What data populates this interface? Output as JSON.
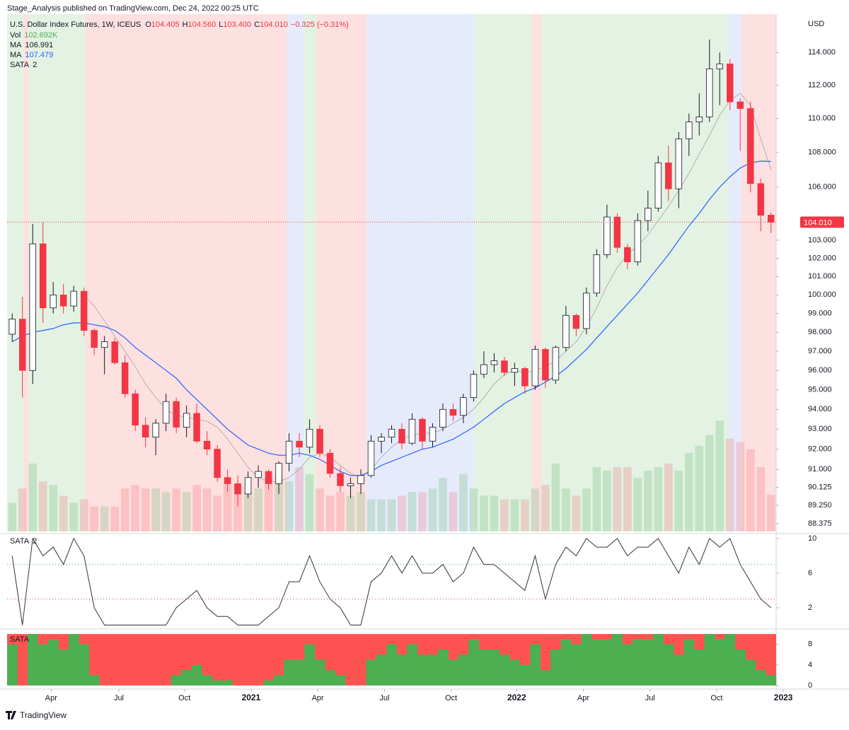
{
  "chart_data": {
    "type": "candlestick",
    "header": "Stage_Analysis published on TradingView.com, Dec 24, 2022 00:25 UTC",
    "title": "U.S. Dollar Index Futures, 1W, ICEUS",
    "currency": "USD",
    "ohlc_labels": [
      "O",
      "H",
      "L",
      "C"
    ],
    "legend_values": [
      "104.405",
      "104.560",
      "103.400",
      "104.010"
    ],
    "change_label": "−0.325 (−0.31%)",
    "footer": "TradingView",
    "xlim": [
      -0.5,
      74.5
    ],
    "xticks": [
      {
        "value": 3.8,
        "label": "Apr"
      },
      {
        "value": 10.4,
        "label": "Jul"
      },
      {
        "value": 16.8,
        "label": "Oct"
      },
      {
        "value": 23.3,
        "label": "2021"
      },
      {
        "value": 29.8,
        "label": "Apr"
      },
      {
        "value": 36.3,
        "label": "Jul"
      },
      {
        "value": 42.8,
        "label": "Oct"
      },
      {
        "value": 49.2,
        "label": "2022"
      },
      {
        "value": 55.7,
        "label": "Apr"
      },
      {
        "value": 62.2,
        "label": "Jul"
      },
      {
        "value": 68.7,
        "label": "Oct"
      },
      {
        "value": 75.2,
        "label": "2023"
      }
    ],
    "ylim": [
      88,
      116.3
    ],
    "log_scale": true,
    "yticks": [
      {
        "value": 114,
        "label": "114.000"
      },
      {
        "value": 112,
        "label": "112.000"
      },
      {
        "value": 110,
        "label": "110.000"
      },
      {
        "value": 108,
        "label": "108.000"
      },
      {
        "value": 106,
        "label": "106.000"
      },
      {
        "value": 103,
        "label": "103.000"
      },
      {
        "value": 102,
        "label": "102.000"
      },
      {
        "value": 101,
        "label": "101.000"
      },
      {
        "value": 100,
        "label": "100.000"
      },
      {
        "value": 99,
        "label": "99.000"
      },
      {
        "value": 98,
        "label": "98.000"
      },
      {
        "value": 97,
        "label": "97.000"
      },
      {
        "value": 96,
        "label": "96.000"
      },
      {
        "value": 95,
        "label": "95.000"
      },
      {
        "value": 94,
        "label": "94.000"
      },
      {
        "value": 93,
        "label": "93.000"
      },
      {
        "value": 92,
        "label": "92.000"
      },
      {
        "value": 91,
        "label": "91.000"
      },
      {
        "value": 90.125,
        "label": "90.125"
      },
      {
        "value": 89.25,
        "label": "89.250"
      },
      {
        "value": 88.375,
        "label": "88.375"
      }
    ],
    "up_color": "#ffffff",
    "down_color": "#f23645",
    "open": [
      97.9,
      98.7,
      96.0,
      102.8,
      99.3,
      100.0,
      99.4,
      100.2,
      98.1,
      97.2,
      97.5,
      96.4,
      94.8,
      93.2,
      92.6,
      93.3,
      94.4,
      93.1,
      93.8,
      92.4,
      92.0,
      90.6,
      90.3,
      89.8,
      90.6,
      90.9,
      90.3,
      91.3,
      92.4,
      92.1,
      93.0,
      91.8,
      90.8,
      90.2,
      90.3,
      90.7,
      92.4,
      92.6,
      93.0,
      92.3,
      93.5,
      92.4,
      93.1,
      94.0,
      93.7,
      94.6,
      95.8,
      96.3,
      96.5,
      95.9,
      96.1,
      95.2,
      97.1,
      95.5,
      97.2,
      98.9,
      98.2,
      100.1,
      102.2,
      104.3,
      102.6,
      101.8,
      104.1,
      104.8,
      107.4,
      105.9,
      108.8,
      109.8,
      110.1,
      113.0,
      113.3,
      111.0,
      110.6,
      106.2,
      104.405
    ],
    "high": [
      99.0,
      99.9,
      103.9,
      104.0,
      100.7,
      100.6,
      100.5,
      100.4,
      98.2,
      97.8,
      97.7,
      96.8,
      95.0,
      93.6,
      93.5,
      94.8,
      94.6,
      94.2,
      94.3,
      92.9,
      92.2,
      91.0,
      90.7,
      90.9,
      91.2,
      91.0,
      91.4,
      92.8,
      92.8,
      93.5,
      93.2,
      92.0,
      91.1,
      90.6,
      91.0,
      92.7,
      92.8,
      93.2,
      93.3,
      93.8,
      93.6,
      93.3,
      94.3,
      94.3,
      94.8,
      96.0,
      97.0,
      96.9,
      96.7,
      96.4,
      96.2,
      97.3,
      97.2,
      97.3,
      99.4,
      99.0,
      100.4,
      102.5,
      105.0,
      104.5,
      102.8,
      104.5,
      105.8,
      107.8,
      108.4,
      109.2,
      110.3,
      111.5,
      114.8,
      114.0,
      113.6,
      111.2,
      111.0,
      106.5,
      104.56
    ],
    "low": [
      97.5,
      94.6,
      95.3,
      98.5,
      99.0,
      99.0,
      99.1,
      97.8,
      96.8,
      95.8,
      96.3,
      94.6,
      92.9,
      92.1,
      91.7,
      92.9,
      92.8,
      92.6,
      92.3,
      91.7,
      90.4,
      89.9,
      89.2,
      89.6,
      90.1,
      90.0,
      89.8,
      90.9,
      91.6,
      91.8,
      91.6,
      90.6,
      89.9,
      89.6,
      89.8,
      90.6,
      91.8,
      92.3,
      92.0,
      92.2,
      92.0,
      92.1,
      92.9,
      93.4,
      93.3,
      94.4,
      95.6,
      95.9,
      95.7,
      95.2,
      94.8,
      95.0,
      95.1,
      95.3,
      97.0,
      97.8,
      97.9,
      99.9,
      102.0,
      102.3,
      101.4,
      101.6,
      103.5,
      104.6,
      105.2,
      104.8,
      107.8,
      109.0,
      109.8,
      110.8,
      110.5,
      108.1,
      105.7,
      103.5,
      103.4
    ],
    "close": [
      98.7,
      96.0,
      102.8,
      99.3,
      100.0,
      99.4,
      100.2,
      98.1,
      97.2,
      97.5,
      96.4,
      94.8,
      93.2,
      92.6,
      93.3,
      94.4,
      93.1,
      93.8,
      92.4,
      92.0,
      90.6,
      90.3,
      89.8,
      90.6,
      90.9,
      90.3,
      91.3,
      92.4,
      92.1,
      93.0,
      91.8,
      90.8,
      90.2,
      90.3,
      90.7,
      92.4,
      92.6,
      93.0,
      92.3,
      93.5,
      92.4,
      93.1,
      94.0,
      93.7,
      94.6,
      95.8,
      96.3,
      96.5,
      95.9,
      96.1,
      95.2,
      97.1,
      95.5,
      97.2,
      98.9,
      98.2,
      100.1,
      102.2,
      104.3,
      102.6,
      101.8,
      104.1,
      104.8,
      107.4,
      105.9,
      108.8,
      109.8,
      110.1,
      113.0,
      113.3,
      111.0,
      110.6,
      106.2,
      104.4,
      104.01
    ],
    "volume": {
      "name": "Vol",
      "value_label": "102.692K",
      "vlim": [
        0,
        360
      ],
      "values": [
        80,
        120,
        190,
        140,
        130,
        100,
        80,
        90,
        70,
        70,
        70,
        120,
        130,
        120,
        120,
        110,
        120,
        110,
        130,
        120,
        100,
        140,
        130,
        110,
        120,
        150,
        150,
        140,
        180,
        160,
        120,
        100,
        110,
        100,
        110,
        90,
        90,
        90,
        100,
        110,
        110,
        120,
        150,
        110,
        160,
        120,
        100,
        100,
        90,
        90,
        90,
        120,
        130,
        190,
        120,
        100,
        120,
        180,
        170,
        180,
        180,
        150,
        170,
        180,
        190,
        170,
        220,
        240,
        270,
        310,
        260,
        250,
        230,
        180,
        102.692
      ]
    },
    "moving_averages": [
      {
        "name": "MA",
        "color": "#a3a3a3",
        "values": [
          null,
          null,
          null,
          null,
          null,
          null,
          null,
          100,
          99.4,
          98.6,
          97.8,
          97,
          96.2,
          95.3,
          94.6,
          94,
          93.7,
          93.6,
          93.5,
          93.4,
          93.1,
          92.5,
          91.8,
          91.1,
          90.6,
          90.4,
          90.4,
          90.6,
          91,
          91.6,
          91.8,
          91.6,
          91.2,
          90.8,
          90.6,
          91,
          91.6,
          92.1,
          92.5,
          92.7,
          92.8,
          92.8,
          93,
          93.3,
          93.6,
          94,
          94.6,
          95.3,
          95.8,
          96,
          95.9,
          96,
          96.2,
          96.5,
          97,
          97.5,
          98.3,
          99.3,
          100.5,
          101.5,
          102.2,
          102.7,
          103.3,
          104.1,
          104.9,
          105.8,
          106.8,
          107.9,
          109,
          110.2,
          111.1,
          111.5,
          110.8,
          108.8,
          106.991
        ]
      },
      {
        "name": "MA",
        "color": "#2962ff",
        "values": [
          97.5,
          97.8,
          98,
          98.1,
          98.2,
          98.4,
          98.5,
          98.5,
          98.4,
          98.3,
          98.1,
          97.7,
          97.2,
          96.8,
          96.4,
          96,
          95.6,
          95,
          94.5,
          94,
          93.5,
          93,
          92.6,
          92.2,
          92,
          91.8,
          91.7,
          91.7,
          91.8,
          91.7,
          91.5,
          91.2,
          90.9,
          90.7,
          90.7,
          90.9,
          91.2,
          91.4,
          91.6,
          91.8,
          92,
          92.1,
          92.3,
          92.5,
          92.8,
          93.1,
          93.5,
          93.9,
          94.3,
          94.6,
          94.9,
          95.1,
          95.4,
          95.7,
          96.1,
          96.6,
          97.1,
          97.7,
          98.3,
          98.9,
          99.5,
          100.1,
          100.8,
          101.5,
          102.2,
          103,
          103.8,
          104.5,
          105.3,
          106,
          106.6,
          107.1,
          107.4,
          107.5,
          107.479
        ]
      }
    ],
    "bands": [
      {
        "from": -0.5,
        "to": 1.1,
        "color": "#e3f2e3"
      },
      {
        "from": 1.1,
        "to": 1.6,
        "color": "#fde0e0"
      },
      {
        "from": 1.6,
        "to": 7.1,
        "color": "#e3f2e3"
      },
      {
        "from": 7.1,
        "to": 26.8,
        "color": "#fde0e0"
      },
      {
        "from": 26.8,
        "to": 28.5,
        "color": "#e6ebfb"
      },
      {
        "from": 28.5,
        "to": 29.7,
        "color": "#e3f2e3"
      },
      {
        "from": 29.7,
        "to": 34.6,
        "color": "#fde0e0"
      },
      {
        "from": 34.6,
        "to": 45,
        "color": "#e6ebfb"
      },
      {
        "from": 45,
        "to": 50.7,
        "color": "#e3f2e3"
      },
      {
        "from": 50.7,
        "to": 51.6,
        "color": "#fde0e0"
      },
      {
        "from": 51.6,
        "to": 69.9,
        "color": "#e3f2e3"
      },
      {
        "from": 69.9,
        "to": 71.1,
        "color": "#e6ebfb"
      },
      {
        "from": 71.1,
        "to": 74.5,
        "color": "#fde0e0"
      }
    ],
    "sata": {
      "name": "SATA",
      "color": "#333333",
      "values": [
        8,
        0,
        10,
        8,
        9,
        7,
        10,
        8,
        2,
        0,
        0,
        0,
        0,
        0,
        0,
        0,
        2,
        3,
        4,
        2,
        1,
        1,
        0,
        0,
        0,
        1,
        2,
        5,
        5,
        8,
        5,
        3,
        2,
        0,
        0,
        5,
        6,
        8,
        6,
        8,
        6,
        6,
        7,
        5,
        6,
        9,
        7,
        7,
        6,
        5,
        4,
        8,
        3,
        7,
        9,
        8,
        10,
        9,
        9,
        10,
        8,
        9,
        9,
        10,
        8,
        6,
        9,
        7,
        10,
        9,
        10,
        7,
        5,
        3,
        2
      ],
      "ylim": [
        -0.45,
        10.57
      ],
      "yticks": [
        2,
        6,
        10
      ],
      "levels": [
        {
          "value": 7,
          "color": "#26a69a"
        },
        {
          "value": 3,
          "color": "#f23645"
        }
      ],
      "heat_ylim": [
        0,
        10.3
      ],
      "heat_yticks": [
        0,
        4,
        8
      ],
      "heat_colors": [
        "#4caf50",
        "#ff5252"
      ]
    }
  }
}
